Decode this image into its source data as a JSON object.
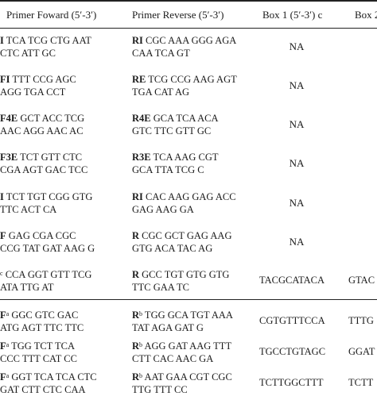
{
  "headers": [
    "Primer Foward (5′-3′)",
    "Primer Reverse (5′-3′)",
    "Box 1 (5′-3′) c",
    "Box 2"
  ],
  "rows": [
    {
      "f_tag": "I",
      "f_sup": "",
      "f1": "TCA TCG CTG AAT",
      "f2": "CTC ATT GC",
      "r_tag": "RI",
      "r_sup": "",
      "r1": "CGC AAA GGG AGA",
      "r2": "CAA TCA GT",
      "box1": "NA",
      "box2": ""
    },
    {
      "f_tag": "FI",
      "f_sup": "",
      "f1": "TTT CCG AGC",
      "f2": "AGG TGA CCT",
      "r_tag": "RE",
      "r_sup": "",
      "r1": "TCG CCG AAG AGT",
      "r2": "TGA CAT AG",
      "box1": "NA",
      "box2": ""
    },
    {
      "f_tag": "F4E",
      "f_sup": "",
      "f1": "GCT ACC TCG",
      "f2": "AAC AGG AAC AC",
      "r_tag": "R4E",
      "r_sup": "",
      "r1": "GCA TCA ACA",
      "r2": "GTC TTC GTT GC",
      "box1": "NA",
      "box2": ""
    },
    {
      "f_tag": "F3E",
      "f_sup": "",
      "f1": "TCT GTT CTC",
      "f2": "CGA AGT GAC TCC",
      "r_tag": "R3E",
      "r_sup": "",
      "r1": "TCA AAG CGT",
      "r2": "GCA TTA TCG C",
      "box1": "NA",
      "box2": ""
    },
    {
      "f_tag": "I",
      "f_sup": "",
      "f1": "TCT TGT CGG GTG",
      "f2": "TTC ACT CA",
      "r_tag": "RI",
      "r_sup": "",
      "r1": "CAC AAG GAG ACC",
      "r2": "GAG AAG GA",
      "box1": "NA",
      "box2": ""
    },
    {
      "f_tag": "F",
      "f_sup": "",
      "f1": "GAG CGA CGC",
      "f2": "CCG TAT GAT AAG G",
      "r_tag": "R",
      "r_sup": "",
      "r1": "CGC GCT GAG AAG",
      "r2": "GTG ACA TAC AG",
      "box1": "NA",
      "box2": ""
    },
    {
      "f_tag": "",
      "f_sup": "c",
      "f1": "CCA GGT GTT TCG",
      "f2": "ATA TTG AT",
      "r_tag": "R",
      "r_sup": "",
      "r1": "GCC TGT GTG GTG",
      "r2": "TTC GAA TC",
      "box1": "TACGCATACA",
      "box2": "GTAC"
    },
    {
      "f_tag": "F",
      "f_sup": "a",
      "f1": "GGC GTC GAC",
      "f2": "ATG AGT TTC TTC",
      "r_tag": "R",
      "r_sup": "b",
      "r1": "TGG GCA TGT AAA",
      "r2": "TAT AGA GAT G",
      "box1": "CGTGTTTCCA",
      "box2": "TTTG"
    },
    {
      "f_tag": "F",
      "f_sup": "a",
      "f1": "TGG TCT TCA",
      "f2": "CCC TTT CAT CC",
      "r_tag": "R",
      "r_sup": "b",
      "r1": "AGG GAT AAG TTT",
      "r2": "CTT CAC AAC GA",
      "box1": "TGCCTGTAGC",
      "box2": "GGAT"
    },
    {
      "f_tag": "F",
      "f_sup": "a",
      "f1": "GGT TCA TCA CTC",
      "f2": "GAT CTT CTC CAA",
      "r_tag": "R",
      "r_sup": "b",
      "r1": "AAT GAA CGT CGC",
      "r2": "TTG TTT CC",
      "box1": "TCTTGGCTTT",
      "box2": "TCTT"
    }
  ]
}
